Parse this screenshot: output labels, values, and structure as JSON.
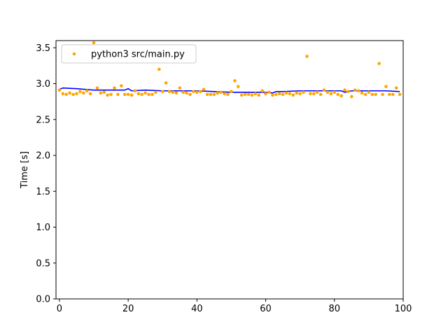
{
  "chart_data": {
    "type": "scatter",
    "title": "",
    "xlabel": "",
    "ylabel": "Time [s]",
    "xlim": [
      -1,
      100
    ],
    "ylim": [
      0,
      3.6
    ],
    "xticks": [
      0,
      20,
      40,
      60,
      80,
      100
    ],
    "yticks": [
      0.0,
      0.5,
      1.0,
      1.5,
      2.0,
      2.5,
      3.0,
      3.5
    ],
    "xtick_labels": [
      "0",
      "20",
      "40",
      "60",
      "80",
      "100"
    ],
    "ytick_labels": [
      "0.0",
      "0.5",
      "1.0",
      "1.5",
      "2.0",
      "2.5",
      "3.0",
      "3.5"
    ],
    "grid": false,
    "legend_position": "upper-left",
    "series": [
      {
        "name": "python3 src/main.py",
        "kind": "scatter",
        "color": "#ffa500",
        "x": [
          0,
          1,
          2,
          3,
          4,
          5,
          6,
          7,
          8,
          9,
          10,
          11,
          12,
          13,
          14,
          15,
          16,
          17,
          18,
          19,
          20,
          21,
          22,
          23,
          24,
          25,
          26,
          27,
          28,
          29,
          30,
          31,
          32,
          33,
          34,
          35,
          36,
          37,
          38,
          39,
          40,
          41,
          42,
          43,
          44,
          45,
          46,
          47,
          48,
          49,
          50,
          51,
          52,
          53,
          54,
          55,
          56,
          57,
          58,
          59,
          60,
          61,
          62,
          63,
          64,
          65,
          66,
          67,
          68,
          69,
          70,
          71,
          72,
          73,
          74,
          75,
          76,
          77,
          78,
          79,
          80,
          81,
          82,
          83,
          84,
          85,
          86,
          87,
          88,
          89,
          90,
          91,
          92,
          93,
          94,
          95,
          96,
          97,
          98,
          99
        ],
        "y": [
          2.91,
          2.86,
          2.85,
          2.87,
          2.85,
          2.86,
          2.89,
          2.87,
          2.9,
          2.86,
          3.57,
          2.94,
          2.87,
          2.88,
          2.84,
          2.85,
          2.94,
          2.85,
          2.97,
          2.85,
          2.85,
          2.84,
          2.9,
          2.86,
          2.85,
          2.87,
          2.85,
          2.85,
          2.88,
          3.2,
          2.89,
          3.01,
          2.89,
          2.88,
          2.87,
          2.94,
          2.88,
          2.87,
          2.85,
          2.89,
          2.88,
          2.89,
          2.92,
          2.85,
          2.85,
          2.85,
          2.87,
          2.88,
          2.86,
          2.85,
          2.89,
          3.04,
          2.96,
          2.84,
          2.85,
          2.85,
          2.84,
          2.86,
          2.84,
          2.9,
          2.86,
          2.88,
          2.84,
          2.85,
          2.86,
          2.85,
          2.87,
          2.86,
          2.84,
          2.87,
          2.86,
          2.88,
          3.38,
          2.86,
          2.86,
          2.88,
          2.85,
          2.91,
          2.88,
          2.86,
          2.88,
          2.85,
          2.83,
          2.91,
          2.89,
          2.82,
          2.91,
          2.9,
          2.87,
          2.85,
          2.88,
          2.85,
          2.85,
          3.28,
          2.85,
          2.96,
          2.85,
          2.85,
          2.94,
          2.85
        ]
      },
      {
        "name": "",
        "kind": "line",
        "color": "#0000ff",
        "x": [
          0,
          1,
          5,
          10,
          15,
          19,
          20,
          21,
          25,
          30,
          35,
          40,
          45,
          50,
          55,
          60,
          62,
          63,
          65,
          70,
          75,
          80,
          82,
          83,
          85,
          90,
          95,
          99
        ],
        "y": [
          2.92,
          2.94,
          2.93,
          2.91,
          2.91,
          2.91,
          2.93,
          2.9,
          2.91,
          2.9,
          2.9,
          2.9,
          2.89,
          2.88,
          2.88,
          2.88,
          2.87,
          2.89,
          2.89,
          2.9,
          2.9,
          2.9,
          2.9,
          2.88,
          2.9,
          2.9,
          2.9,
          2.89
        ]
      }
    ]
  }
}
